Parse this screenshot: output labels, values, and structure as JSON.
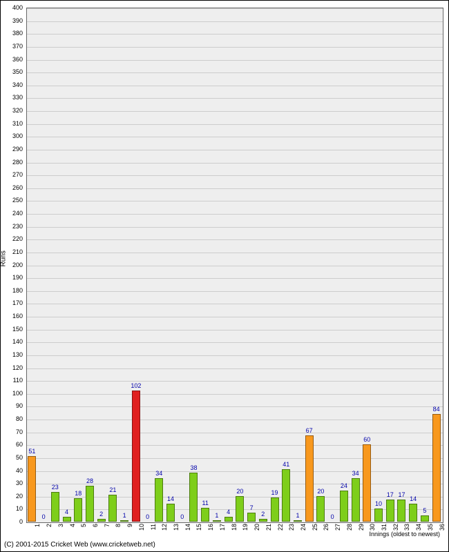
{
  "chart": {
    "type": "bar",
    "y_axis_label": "Runs",
    "x_axis_label": "Innings (oldest to newest)",
    "copyright": "(C) 2001-2015 Cricket Web (www.cricketweb.net)",
    "ylim": [
      0,
      400
    ],
    "ytick_step": 10,
    "background_color": "#eeeeee",
    "grid_color": "#cccccc",
    "colors": {
      "green": "#7ece1a",
      "orange": "#f8981d",
      "red": "#e02020"
    },
    "bars": [
      {
        "x": 1,
        "value": 51,
        "color": "orange"
      },
      {
        "x": 2,
        "value": 0,
        "color": "green"
      },
      {
        "x": 3,
        "value": 23,
        "color": "green"
      },
      {
        "x": 4,
        "value": 4,
        "color": "green"
      },
      {
        "x": 5,
        "value": 18,
        "color": "green"
      },
      {
        "x": 6,
        "value": 28,
        "color": "green"
      },
      {
        "x": 7,
        "value": 2,
        "color": "green"
      },
      {
        "x": 8,
        "value": 21,
        "color": "green"
      },
      {
        "x": 9,
        "value": 1,
        "color": "green"
      },
      {
        "x": 10,
        "value": 102,
        "color": "red"
      },
      {
        "x": 11,
        "value": 0,
        "color": "green"
      },
      {
        "x": 12,
        "value": 34,
        "color": "green"
      },
      {
        "x": 13,
        "value": 14,
        "color": "green"
      },
      {
        "x": 14,
        "value": 0,
        "color": "green"
      },
      {
        "x": 15,
        "value": 38,
        "color": "green"
      },
      {
        "x": 16,
        "value": 11,
        "color": "green"
      },
      {
        "x": 17,
        "value": 1,
        "color": "green"
      },
      {
        "x": 18,
        "value": 4,
        "color": "green"
      },
      {
        "x": 19,
        "value": 20,
        "color": "green"
      },
      {
        "x": 20,
        "value": 7,
        "color": "green"
      },
      {
        "x": 21,
        "value": 2,
        "color": "green"
      },
      {
        "x": 22,
        "value": 19,
        "color": "green"
      },
      {
        "x": 23,
        "value": 41,
        "color": "green"
      },
      {
        "x": 24,
        "value": 1,
        "color": "green"
      },
      {
        "x": 25,
        "value": 67,
        "color": "orange"
      },
      {
        "x": 26,
        "value": 20,
        "color": "green"
      },
      {
        "x": 27,
        "value": 0,
        "color": "green"
      },
      {
        "x": 28,
        "value": 24,
        "color": "green"
      },
      {
        "x": 29,
        "value": 34,
        "color": "green"
      },
      {
        "x": 30,
        "value": 60,
        "color": "orange"
      },
      {
        "x": 31,
        "value": 10,
        "color": "green"
      },
      {
        "x": 32,
        "value": 17,
        "color": "green"
      },
      {
        "x": 33,
        "value": 17,
        "color": "green"
      },
      {
        "x": 34,
        "value": 14,
        "color": "green"
      },
      {
        "x": 35,
        "value": 5,
        "color": "green"
      },
      {
        "x": 36,
        "value": 84,
        "color": "orange"
      }
    ]
  }
}
